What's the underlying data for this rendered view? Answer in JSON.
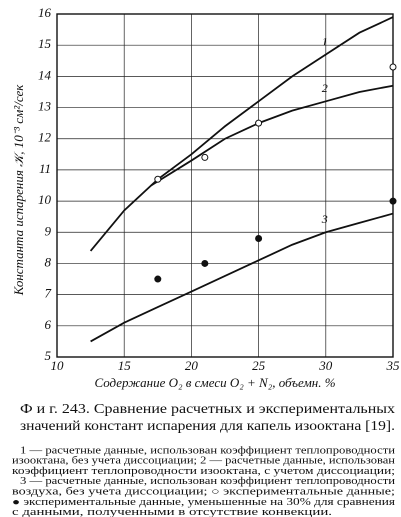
{
  "chart_data": {
    "type": "line",
    "y_label": "Константа испарения 𝒦, 10⁻³ см²/сек",
    "x_label": "Содержание O₂ в смеси O₂ + N₂, объемн. %",
    "xlim": [
      10,
      35
    ],
    "xticks": [
      10,
      15,
      20,
      25,
      30,
      35
    ],
    "ylim": [
      5,
      16
    ],
    "yticks": [
      5,
      6,
      7,
      8,
      9,
      10,
      11,
      12,
      13,
      14,
      15,
      16
    ],
    "grid": true,
    "series": [
      {
        "name": "1",
        "style": "line",
        "color": "#111111",
        "x": [
          12.5,
          15,
          17.5,
          20,
          22.5,
          25,
          27.5,
          30,
          32.5,
          35
        ],
        "values": [
          8.4,
          9.7,
          10.7,
          11.5,
          12.4,
          13.2,
          14.0,
          14.7,
          15.4,
          15.9
        ]
      },
      {
        "name": "2",
        "style": "line",
        "color": "#111111",
        "x": [
          17,
          20,
          22.5,
          25,
          27.5,
          30,
          32.5,
          35
        ],
        "values": [
          10.5,
          11.3,
          12.0,
          12.5,
          12.9,
          13.2,
          13.5,
          13.7
        ]
      },
      {
        "name": "3",
        "style": "line",
        "color": "#111111",
        "x": [
          12.5,
          15,
          17.5,
          20,
          22.5,
          25,
          27.5,
          30,
          32.5,
          35
        ],
        "values": [
          5.5,
          6.1,
          6.6,
          7.1,
          7.6,
          8.1,
          8.6,
          9.0,
          9.3,
          9.6
        ]
      },
      {
        "style": "open-marker",
        "color": "#111111",
        "x": [
          17.5,
          21,
          25,
          35
        ],
        "values": [
          10.7,
          11.4,
          12.5,
          14.3
        ]
      },
      {
        "style": "filled-marker",
        "color": "#111111",
        "x": [
          17.5,
          21,
          25,
          35
        ],
        "values": [
          7.5,
          8.0,
          8.8,
          10.0
        ]
      }
    ],
    "caption": [
      "Ф и г. 243. Сравнение расчетных и экспериментальных",
      "значений констант испарения для капель изооктана [19]."
    ],
    "notes": [
      "1 — расчетные данные, использован коэффициент теплопроводности",
      "изооктана, без учета диссоциации; 2 — расчетные данные, использован",
      "коэффициент теплопроводности изооктана, с учетом диссоциации;",
      "3 — расчетные данные, использован коэффициент теплопроводности",
      "воздуха, без учета диссоциации; ○ экспериментальные данные;",
      "● экспериментальные данные, уменьшенные на 30% для сравнения",
      "с данными, полученными в отсутствие конвекции."
    ]
  }
}
